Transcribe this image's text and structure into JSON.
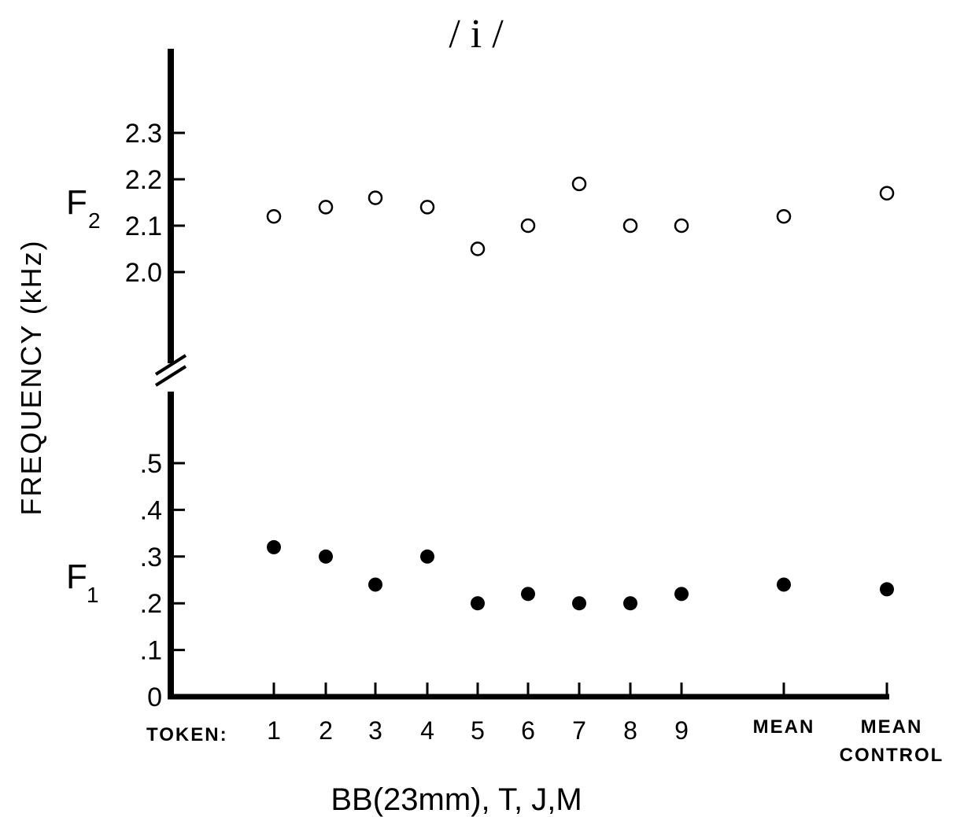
{
  "chart_data": {
    "type": "scatter",
    "title": "/ i /",
    "ylabel": "FREQUENCY (kHz)",
    "xlabel": "BB(23mm), T, J,M",
    "x_prefix": "TOKEN:",
    "categories": [
      "1",
      "2",
      "3",
      "4",
      "5",
      "6",
      "7",
      "8",
      "9",
      "MEAN",
      "MEAN CONTROL"
    ],
    "series": [
      {
        "name": "F",
        "subscript": "2",
        "marker": "open-circle",
        "values": [
          2.12,
          2.14,
          2.16,
          2.14,
          2.05,
          2.1,
          2.19,
          2.1,
          2.1,
          2.12,
          2.17
        ]
      },
      {
        "name": "F",
        "subscript": "1",
        "marker": "filled-circle",
        "values": [
          0.32,
          0.3,
          0.24,
          0.3,
          0.2,
          0.22,
          0.2,
          0.2,
          0.22,
          0.24,
          0.23
        ]
      }
    ],
    "upper_axis": {
      "ylim": [
        1.92,
        2.42
      ],
      "ticks": [
        2.0,
        2.1,
        2.2,
        2.3
      ],
      "tick_labels": [
        "2.0",
        "2.1",
        "2.2",
        "2.3"
      ]
    },
    "lower_axis": {
      "ylim": [
        0,
        0.62
      ],
      "ticks": [
        0,
        0.1,
        0.2,
        0.3,
        0.4,
        0.5
      ],
      "tick_labels": [
        "0",
        ".1",
        ".2",
        ".3",
        ".4",
        ".5"
      ]
    },
    "axis_break": true,
    "grid": false
  }
}
